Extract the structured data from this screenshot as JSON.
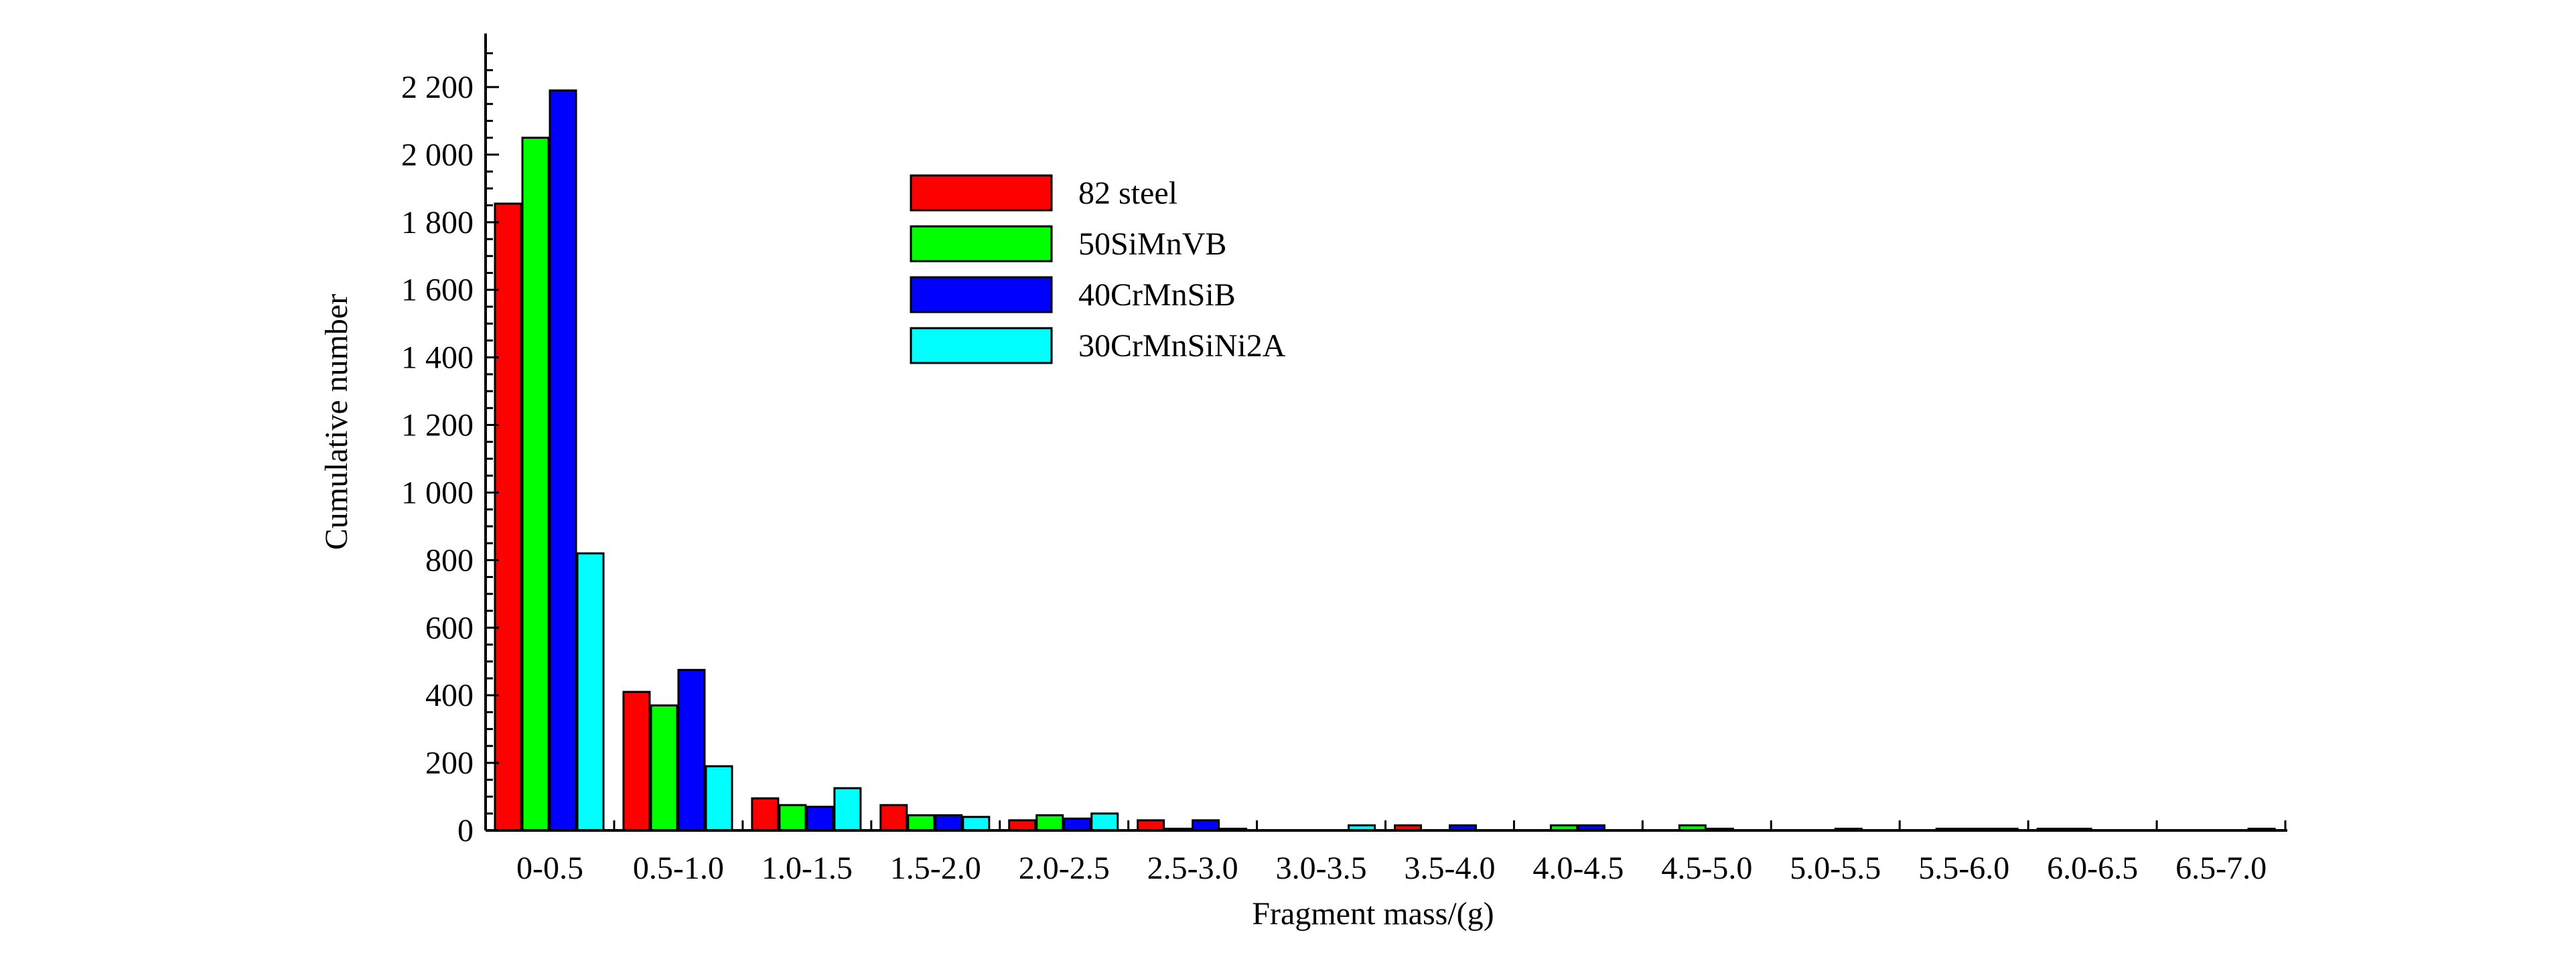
{
  "chart_data": {
    "type": "bar",
    "xlabel": "Fragment mass/(g)",
    "ylabel": "Cumulative number",
    "ylim": [
      0,
      2350
    ],
    "yticks": [
      0,
      200,
      400,
      600,
      800,
      1000,
      1200,
      1400,
      1600,
      1800,
      2000,
      2200
    ],
    "ytick_labels": [
      "0",
      "200",
      "400",
      "600",
      "800",
      "1 000",
      "1 200",
      "1 400",
      "1 600",
      "1 800",
      "2 000",
      "2 200"
    ],
    "grid": false,
    "legend_position": "upper-center",
    "categories": [
      "0-0.5",
      "0.5-1.0",
      "1.0-1.5",
      "1.5-2.0",
      "2.0-2.5",
      "2.5-3.0",
      "3.0-3.5",
      "3.5-4.0",
      "4.0-4.5",
      "4.5-5.0",
      "5.0-5.5",
      "5.5-6.0",
      "6.0-6.5",
      "6.5-7.0"
    ],
    "series": [
      {
        "name": "82 steel",
        "color": "#ff0000",
        "values": [
          1855,
          410,
          95,
          75,
          30,
          30,
          0,
          15,
          0,
          0,
          0,
          0,
          5,
          0
        ]
      },
      {
        "name": "50SiMnVB",
        "color": "#00ff00",
        "values": [
          2050,
          370,
          75,
          45,
          45,
          5,
          0,
          0,
          15,
          15,
          0,
          5,
          5,
          0
        ]
      },
      {
        "name": "40CrMnSiB",
        "color": "#0000ff",
        "values": [
          2190,
          475,
          70,
          45,
          35,
          30,
          0,
          15,
          15,
          5,
          5,
          5,
          0,
          0
        ]
      },
      {
        "name": "30CrMnSiNi2A",
        "color": "#00ffff",
        "values": [
          820,
          190,
          125,
          40,
          50,
          5,
          15,
          0,
          0,
          0,
          0,
          5,
          0,
          5
        ]
      }
    ]
  }
}
